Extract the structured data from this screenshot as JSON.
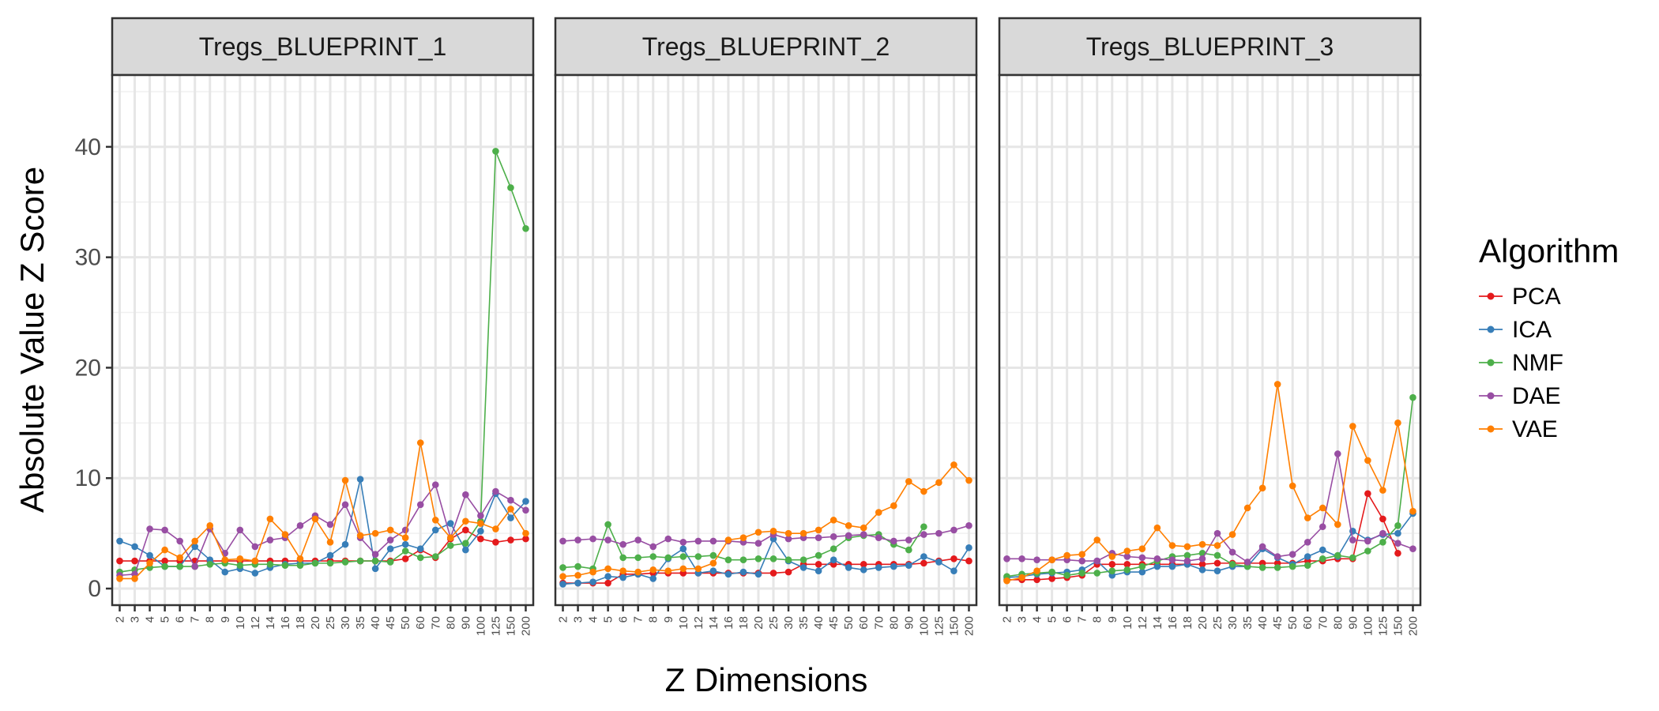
{
  "chart_data": {
    "type": "line",
    "xlabel": "Z Dimensions",
    "ylabel": "Absolute Value Z Score",
    "ylim": [
      -1.5,
      46.5
    ],
    "yticks": [
      0,
      10,
      20,
      30,
      40
    ],
    "grid": true,
    "legend_position": "right",
    "legend_title": "Algorithm",
    "categories": [
      "2",
      "3",
      "4",
      "5",
      "6",
      "7",
      "8",
      "9",
      "10",
      "12",
      "14",
      "16",
      "18",
      "20",
      "25",
      "30",
      "35",
      "40",
      "45",
      "50",
      "60",
      "70",
      "80",
      "90",
      "100",
      "125",
      "150",
      "200"
    ],
    "panels": [
      {
        "title": "Tregs_BLUEPRINT_1",
        "series": [
          {
            "name": "PCA",
            "color": "#e41a1c",
            "values": [
              2.5,
              2.5,
              2.5,
              2.5,
              2.5,
              2.5,
              2.5,
              2.5,
              2.5,
              2.5,
              2.5,
              2.5,
              2.5,
              2.5,
              2.5,
              2.5,
              2.5,
              2.5,
              2.5,
              2.7,
              3.5,
              2.8,
              4.5,
              5.3,
              4.5,
              4.2,
              4.4,
              4.5
            ]
          },
          {
            "name": "ICA",
            "color": "#377eb8",
            "values": [
              4.3,
              3.8,
              3.0,
              2.0,
              2.0,
              3.8,
              2.6,
              1.5,
              1.8,
              1.4,
              1.9,
              2.2,
              2.3,
              2.3,
              3.0,
              4.0,
              9.9,
              1.8,
              3.6,
              4.0,
              3.6,
              5.3,
              5.9,
              3.5,
              5.2,
              8.6,
              6.4,
              7.9
            ]
          },
          {
            "name": "NMF",
            "color": "#4daf4a",
            "values": [
              1.5,
              1.7,
              1.9,
              2.0,
              2.0,
              2.0,
              2.2,
              2.3,
              2.1,
              2.2,
              2.2,
              2.1,
              2.1,
              2.3,
              2.3,
              2.4,
              2.5,
              2.5,
              2.4,
              3.4,
              2.8,
              2.9,
              3.9,
              4.1,
              6.1,
              39.6,
              36.3,
              32.6
            ]
          },
          {
            "name": "DAE",
            "color": "#984ea3",
            "values": [
              1.2,
              1.3,
              5.4,
              5.3,
              4.3,
              2.0,
              5.4,
              3.2,
              5.3,
              3.8,
              4.4,
              4.6,
              5.7,
              6.6,
              5.8,
              7.6,
              4.6,
              3.1,
              4.4,
              5.3,
              7.6,
              9.4,
              4.6,
              8.5,
              6.6,
              8.8,
              8.0,
              7.1
            ]
          },
          {
            "name": "VAE",
            "color": "#ff7f00",
            "values": [
              0.9,
              0.9,
              2.3,
              3.5,
              2.8,
              4.3,
              5.7,
              2.6,
              2.7,
              2.5,
              6.3,
              4.9,
              2.7,
              6.3,
              4.2,
              9.8,
              4.8,
              5.0,
              5.3,
              4.6,
              13.2,
              6.2,
              4.6,
              6.1,
              5.9,
              5.4,
              7.2,
              5.0
            ]
          }
        ]
      },
      {
        "title": "Tregs_BLUEPRINT_2",
        "series": [
          {
            "name": "PCA",
            "color": "#e41a1c",
            "values": [
              0.5,
              0.5,
              0.5,
              0.5,
              1.3,
              1.3,
              1.4,
              1.4,
              1.4,
              1.4,
              1.4,
              1.4,
              1.4,
              1.4,
              1.4,
              1.5,
              2.2,
              2.2,
              2.2,
              2.2,
              2.2,
              2.2,
              2.2,
              2.2,
              2.3,
              2.5,
              2.7,
              2.5
            ]
          },
          {
            "name": "ICA",
            "color": "#377eb8",
            "values": [
              0.4,
              0.5,
              0.6,
              1.1,
              1.0,
              1.3,
              0.9,
              2.7,
              3.6,
              1.4,
              1.6,
              1.3,
              1.5,
              1.3,
              4.5,
              2.5,
              1.9,
              1.6,
              2.6,
              1.9,
              1.7,
              1.9,
              2.0,
              2.1,
              2.9,
              2.4,
              1.6,
              3.7
            ]
          },
          {
            "name": "NMF",
            "color": "#4daf4a",
            "values": [
              1.9,
              2.0,
              1.8,
              5.8,
              2.8,
              2.8,
              2.9,
              2.8,
              2.9,
              2.9,
              3.0,
              2.6,
              2.6,
              2.7,
              2.7,
              2.6,
              2.6,
              3.0,
              3.6,
              4.6,
              4.8,
              4.9,
              4.0,
              3.5,
              5.6,
              null,
              null,
              null
            ]
          },
          {
            "name": "DAE",
            "color": "#984ea3",
            "values": [
              4.3,
              4.4,
              4.5,
              4.4,
              4.0,
              4.4,
              3.8,
              4.5,
              4.2,
              4.3,
              4.3,
              4.3,
              4.2,
              4.1,
              4.9,
              4.5,
              4.6,
              4.6,
              4.7,
              4.8,
              4.9,
              4.6,
              4.3,
              4.4,
              4.9,
              5.0,
              5.3,
              5.7
            ]
          },
          {
            "name": "VAE",
            "color": "#ff7f00",
            "values": [
              1.1,
              1.2,
              1.5,
              1.8,
              1.6,
              1.5,
              1.7,
              1.6,
              1.8,
              1.8,
              2.3,
              4.4,
              4.6,
              5.1,
              5.2,
              5.0,
              5.0,
              5.3,
              6.2,
              5.7,
              5.5,
              6.9,
              7.5,
              9.7,
              8.8,
              9.6,
              11.2,
              9.8
            ]
          }
        ]
      },
      {
        "title": "Tregs_BLUEPRINT_3",
        "series": [
          {
            "name": "PCA",
            "color": "#e41a1c",
            "values": [
              0.8,
              0.8,
              0.8,
              0.9,
              1.0,
              1.2,
              2.2,
              2.2,
              2.2,
              2.2,
              2.2,
              2.2,
              2.2,
              2.2,
              2.3,
              2.3,
              2.3,
              2.3,
              2.3,
              2.3,
              2.5,
              2.5,
              2.7,
              2.7,
              8.6,
              6.3,
              3.2,
              null
            ]
          },
          {
            "name": "ICA",
            "color": "#377eb8",
            "values": [
              1.0,
              1.1,
              1.3,
              1.4,
              1.5,
              1.7,
              2.5,
              1.2,
              1.5,
              1.5,
              2.0,
              2.0,
              2.2,
              1.7,
              1.6,
              2.0,
              2.0,
              3.6,
              2.8,
              2.2,
              2.9,
              3.5,
              2.9,
              5.2,
              4.4,
              4.9,
              5.0,
              6.8
            ]
          },
          {
            "name": "NMF",
            "color": "#4daf4a",
            "values": [
              1.1,
              1.3,
              1.4,
              1.5,
              1.2,
              1.4,
              1.4,
              1.6,
              1.7,
              2.0,
              2.5,
              2.9,
              3.0,
              3.2,
              3.0,
              2.2,
              2.0,
              1.9,
              1.9,
              2.0,
              2.1,
              2.7,
              3.0,
              2.8,
              3.4,
              4.2,
              5.7,
              17.3
            ]
          },
          {
            "name": "DAE",
            "color": "#984ea3",
            "values": [
              2.7,
              2.7,
              2.6,
              2.6,
              2.6,
              2.5,
              2.5,
              3.2,
              2.9,
              2.8,
              2.7,
              2.6,
              2.5,
              2.7,
              5.0,
              3.3,
              2.4,
              3.8,
              2.9,
              3.1,
              4.2,
              5.6,
              12.2,
              4.4,
              4.3,
              5.0,
              4.1,
              3.6
            ]
          },
          {
            "name": "VAE",
            "color": "#ff7f00",
            "values": [
              0.7,
              1.0,
              1.6,
              2.6,
              3.0,
              3.1,
              4.4,
              2.9,
              3.4,
              3.6,
              5.5,
              3.9,
              3.8,
              4.0,
              3.9,
              4.9,
              7.3,
              9.1,
              18.5,
              9.3,
              6.4,
              7.3,
              5.8,
              14.7,
              11.6,
              8.9,
              15.0,
              7.0
            ]
          }
        ]
      }
    ]
  }
}
